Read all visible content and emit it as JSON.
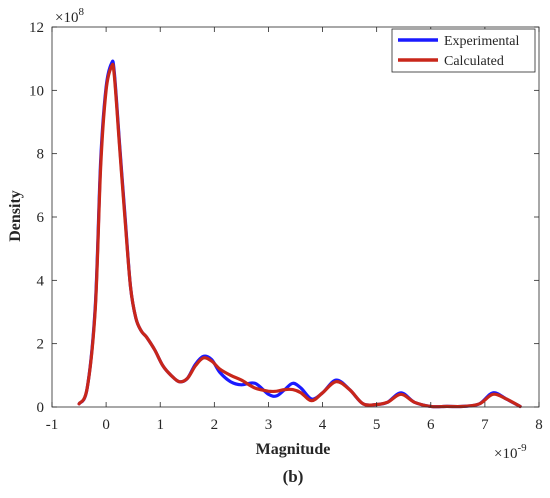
{
  "figure": {
    "panel_label": "(b)"
  },
  "chart_data": {
    "type": "line",
    "xlabel": "Magnitude",
    "ylabel": "Density",
    "x_exponent_label": "×10",
    "x_exponent_power": "-9",
    "y_exponent_label": "×10",
    "y_exponent_power": "8",
    "xlim": [
      -1,
      8
    ],
    "ylim": [
      0,
      12
    ],
    "x_ticks": [
      -1,
      0,
      1,
      2,
      3,
      4,
      5,
      6,
      7,
      8
    ],
    "y_ticks": [
      0,
      2,
      4,
      6,
      8,
      10,
      12
    ],
    "grid": false,
    "legend_position": "top-right",
    "series": [
      {
        "name": "Experimental",
        "color": "#1a1aff",
        "x": [
          -0.5,
          -0.35,
          -0.2,
          -0.1,
          0.0,
          0.1,
          0.15,
          0.25,
          0.35,
          0.45,
          0.55,
          0.65,
          0.75,
          0.9,
          1.05,
          1.2,
          1.35,
          1.5,
          1.65,
          1.8,
          1.95,
          2.1,
          2.3,
          2.5,
          2.75,
          3.0,
          3.15,
          3.3,
          3.45,
          3.6,
          3.8,
          4.0,
          4.25,
          4.5,
          4.75,
          5.0,
          5.2,
          5.45,
          5.7,
          6.0,
          6.3,
          6.6,
          6.9,
          7.15,
          7.4,
          7.65
        ],
        "values": [
          0.1,
          0.6,
          3.2,
          7.8,
          10.1,
          10.85,
          10.6,
          8.3,
          6.0,
          3.8,
          2.8,
          2.4,
          2.2,
          1.8,
          1.3,
          1.0,
          0.8,
          0.9,
          1.35,
          1.6,
          1.5,
          1.1,
          0.8,
          0.7,
          0.75,
          0.4,
          0.35,
          0.55,
          0.75,
          0.6,
          0.25,
          0.45,
          0.85,
          0.55,
          0.1,
          0.08,
          0.15,
          0.45,
          0.15,
          0.02,
          0.02,
          0.02,
          0.1,
          0.45,
          0.25,
          0.02
        ]
      },
      {
        "name": "Calculated",
        "color": "#c8261a",
        "x": [
          -0.5,
          -0.35,
          -0.2,
          -0.1,
          0.0,
          0.1,
          0.15,
          0.25,
          0.35,
          0.45,
          0.55,
          0.65,
          0.75,
          0.9,
          1.05,
          1.2,
          1.35,
          1.5,
          1.65,
          1.8,
          1.95,
          2.1,
          2.3,
          2.5,
          2.75,
          3.0,
          3.15,
          3.3,
          3.45,
          3.6,
          3.8,
          4.0,
          4.25,
          4.5,
          4.75,
          5.0,
          5.2,
          5.45,
          5.7,
          6.0,
          6.3,
          6.6,
          6.9,
          7.15,
          7.4,
          7.65
        ],
        "values": [
          0.1,
          0.6,
          3.1,
          7.6,
          10.0,
          10.75,
          10.5,
          8.2,
          5.9,
          3.8,
          2.8,
          2.4,
          2.2,
          1.8,
          1.3,
          1.0,
          0.8,
          0.9,
          1.3,
          1.55,
          1.45,
          1.2,
          1.0,
          0.85,
          0.6,
          0.5,
          0.5,
          0.55,
          0.55,
          0.45,
          0.2,
          0.45,
          0.8,
          0.55,
          0.1,
          0.08,
          0.15,
          0.4,
          0.15,
          0.02,
          0.02,
          0.02,
          0.1,
          0.4,
          0.25,
          0.02
        ]
      }
    ]
  }
}
